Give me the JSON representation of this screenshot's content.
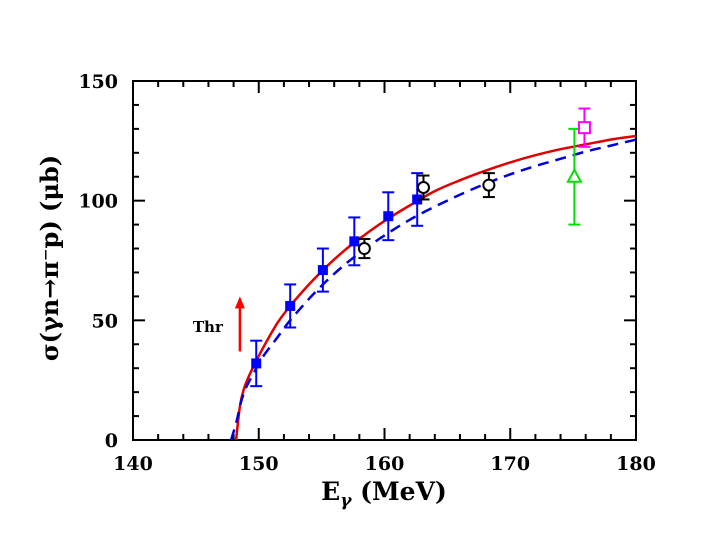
{
  "chart_data": {
    "type": "scatter",
    "xlabel": "E",
    "xlabel_sub": "γ",
    "xlabel_rest": " (MeV)",
    "ylabel": "σ(γn→π⁻p) (μb)",
    "xlim": [
      140,
      180
    ],
    "ylim": [
      0,
      150
    ],
    "x_ticks": [
      140,
      150,
      160,
      170,
      180
    ],
    "y_ticks": [
      0,
      50,
      100,
      150
    ],
    "grid": false,
    "annotation": {
      "text": "Thr",
      "x": 148.5,
      "y_from": 37,
      "y_to": 60,
      "color": "#ff0000"
    },
    "curves": [
      {
        "style": "solid",
        "color": "#e00000",
        "x": [
          148.2,
          148.5,
          148.8,
          149.2,
          149.7,
          150.5,
          151.5,
          152.5,
          154,
          155.5,
          157,
          158.5,
          160,
          162,
          164,
          166,
          168,
          170,
          172,
          174,
          176,
          178,
          180
        ],
        "y": [
          0,
          14,
          21,
          26.5,
          32,
          40,
          49,
          56,
          65,
          73,
          80,
          86,
          91.5,
          98,
          104,
          108.5,
          112.5,
          116,
          119,
          121.5,
          123.5,
          125.5,
          127
        ]
      },
      {
        "style": "dashed",
        "color": "#0000dd",
        "x": [
          147.8,
          148.2,
          148.6,
          149.0,
          149.5,
          150.3,
          151.5,
          152.5,
          154,
          155.5,
          157,
          158.5,
          160,
          162,
          164,
          166,
          168,
          170,
          172,
          174,
          176,
          178,
          180
        ],
        "y": [
          0,
          7,
          16,
          22,
          27,
          34.5,
          43,
          50,
          59,
          67,
          74,
          80,
          85.5,
          92,
          97.5,
          102.5,
          107,
          111,
          114.5,
          117.5,
          120.5,
          123,
          125.5
        ]
      }
    ],
    "series": [
      {
        "marker": "filled-square",
        "color": "#0000ff",
        "x": [
          149.8,
          152.5,
          155.1,
          157.6,
          160.3,
          162.6
        ],
        "y": [
          32,
          56,
          71,
          83,
          93.5,
          100.5
        ],
        "err": [
          9.5,
          9,
          9,
          10,
          10,
          11
        ]
      },
      {
        "marker": "open-circle",
        "color": "#000000",
        "x": [
          158.4,
          163.1,
          168.3
        ],
        "y": [
          80,
          105.5,
          106.5
        ],
        "err": [
          4,
          5,
          5
        ]
      },
      {
        "marker": "open-triangle",
        "color": "#00e000",
        "x": [
          175.1
        ],
        "y": [
          110
        ],
        "err": [
          20
        ]
      },
      {
        "marker": "open-square",
        "color": "#ff00ff",
        "x": [
          175.9
        ],
        "y": [
          130.5
        ],
        "err": [
          8
        ]
      }
    ]
  }
}
